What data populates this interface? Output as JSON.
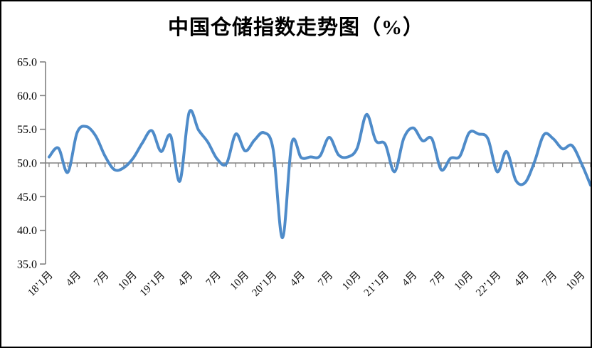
{
  "page": {
    "background": "#ffffff",
    "frame_border_color": "#000000"
  },
  "chart": {
    "title": "中国仓储指数走势图（%）",
    "line_color": "#4E8BC9",
    "axis_color": "#808080",
    "label_color": "#000000"
  },
  "chart_data": {
    "type": "line",
    "title": "中国仓储指数走势图（%）",
    "unit": "%",
    "smoothed": true,
    "grid": "off",
    "legend": "none",
    "ylim": [
      35.0,
      65.0
    ],
    "y_ticks": [
      65.0,
      60.0,
      55.0,
      50.0,
      45.0,
      40.0,
      35.0
    ],
    "x_axis_crosses_at": 50.0,
    "x_tick_interval_months": 3,
    "x_tick_labels": [
      "18’1月",
      "4月",
      "7月",
      "10月",
      "19’1月",
      "4月",
      "7月",
      "10月",
      "20’1月",
      "4月",
      "7月",
      "10月",
      "21’1月",
      "4月",
      "7月",
      "10月",
      "22’1月",
      "4月",
      "7月",
      "10月"
    ],
    "categories": [
      "2018-01",
      "2018-02",
      "2018-03",
      "2018-04",
      "2018-05",
      "2018-06",
      "2018-07",
      "2018-08",
      "2018-09",
      "2018-10",
      "2018-11",
      "2018-12",
      "2019-01",
      "2019-02",
      "2019-03",
      "2019-04",
      "2019-05",
      "2019-06",
      "2019-07",
      "2019-08",
      "2019-09",
      "2019-10",
      "2019-11",
      "2019-12",
      "2020-01",
      "2020-02",
      "2020-03",
      "2020-04",
      "2020-05",
      "2020-06",
      "2020-07",
      "2020-08",
      "2020-09",
      "2020-10",
      "2020-11",
      "2020-12",
      "2021-01",
      "2021-02",
      "2021-03",
      "2021-04",
      "2021-05",
      "2021-06",
      "2021-07",
      "2021-08",
      "2021-09",
      "2021-10",
      "2021-11",
      "2021-12",
      "2022-01",
      "2022-02",
      "2022-03",
      "2022-04",
      "2022-05",
      "2022-06",
      "2022-07",
      "2022-08",
      "2022-09",
      "2022-10",
      "2022-11"
    ],
    "values": [
      50.9,
      52.2,
      48.6,
      54.5,
      55.4,
      54.0,
      51.0,
      49.0,
      49.3,
      50.7,
      53.0,
      54.8,
      51.7,
      54.1,
      47.3,
      57.5,
      54.9,
      53.1,
      50.6,
      49.9,
      54.3,
      51.8,
      53.4,
      54.5,
      52.0,
      38.9,
      53.0,
      50.8,
      50.9,
      51.0,
      53.8,
      51.2,
      50.9,
      52.2,
      57.2,
      53.3,
      52.8,
      48.7,
      53.7,
      55.2,
      53.3,
      53.6,
      49.0,
      50.7,
      51.0,
      54.5,
      54.3,
      53.6,
      48.7,
      51.7,
      47.4,
      47.1,
      50.2,
      54.2,
      53.6,
      52.1,
      52.6,
      50.0,
      46.7
    ]
  }
}
